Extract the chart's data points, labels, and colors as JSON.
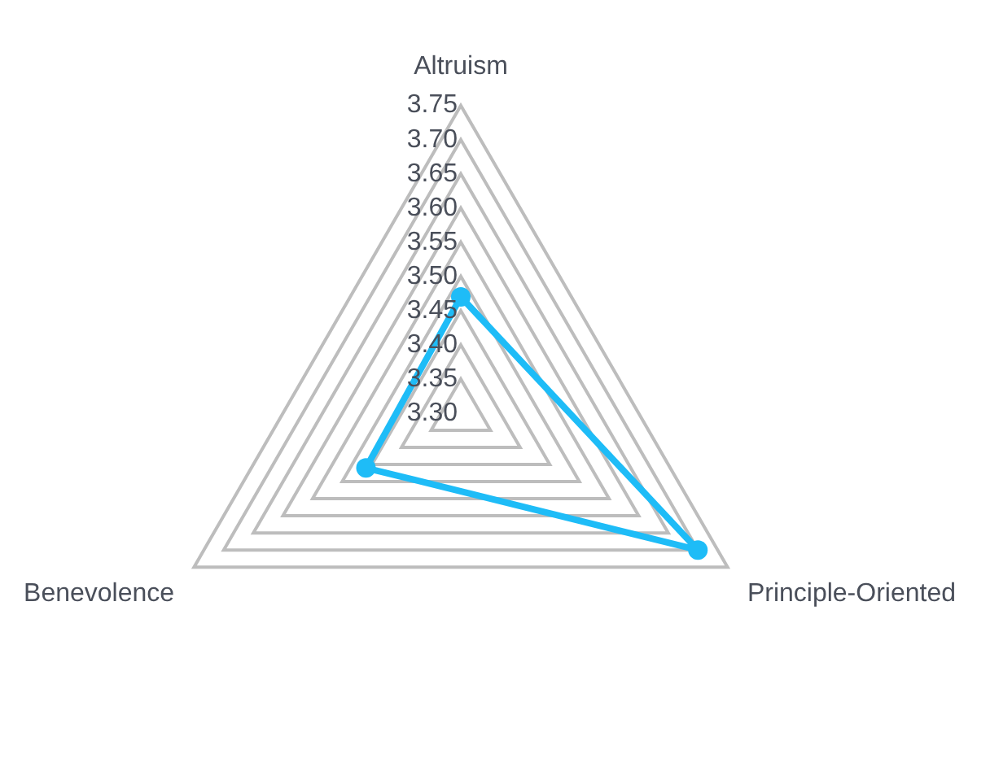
{
  "chart_data": {
    "type": "radar",
    "categories": [
      "Altruism",
      "Principle-Oriented",
      "Benevolence"
    ],
    "series": [
      {
        "color": "#1ebcf7",
        "values": [
          3.47,
          3.7,
          3.46
        ]
      }
    ],
    "ylim": [
      3.3,
      3.75
    ],
    "yticks": [
      {
        "value": 3.3,
        "label": "3.30"
      },
      {
        "value": 3.35,
        "label": "3.35"
      },
      {
        "value": 3.4,
        "label": "3.40"
      },
      {
        "value": 3.45,
        "label": "3.45"
      },
      {
        "value": 3.5,
        "label": "3.50"
      },
      {
        "value": 3.55,
        "label": "3.55"
      },
      {
        "value": 3.6,
        "label": "3.60"
      },
      {
        "value": 3.65,
        "label": "3.65"
      },
      {
        "value": 3.7,
        "label": "3.70"
      },
      {
        "value": 3.75,
        "label": "3.75"
      }
    ],
    "grid": true,
    "legend": false,
    "marker": "circle"
  }
}
